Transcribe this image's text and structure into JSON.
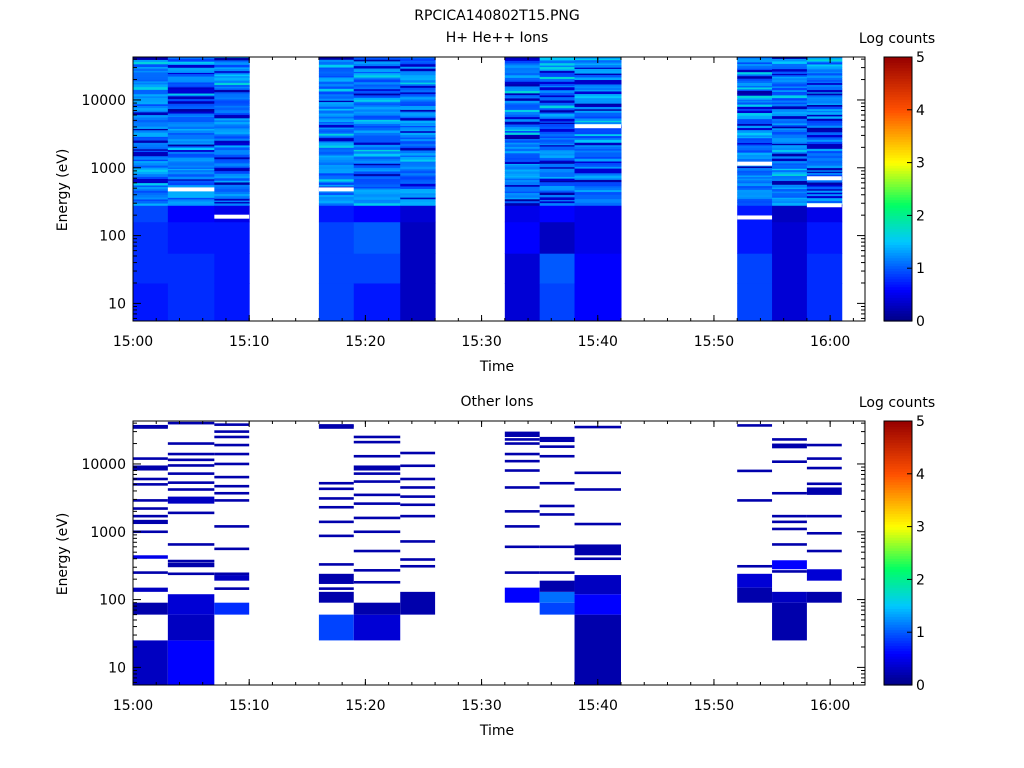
{
  "figure_title": "RPCICA140802T15.PNG",
  "chart_data": [
    {
      "type": "heatmap",
      "title": "H+ He++ Ions",
      "xlabel": "Time",
      "ylabel": "Energy (eV)",
      "colorbar_label": "Log counts",
      "colorbar_ticks": [
        "0",
        "1",
        "2",
        "3",
        "4",
        "5"
      ],
      "clim": [
        0,
        5
      ],
      "x_ticks": [
        "15:00",
        "15:10",
        "15:20",
        "15:30",
        "15:40",
        "15:50",
        "16:00"
      ],
      "y_ticks": [
        "10",
        "100",
        "1000",
        "10000"
      ],
      "y_scale": "log",
      "ylim": [
        5.5,
        43000
      ],
      "xlim": [
        "15:00",
        "16:03"
      ],
      "grid": false,
      "time_bins": [
        {
          "start": "15:00",
          "end": "15:03"
        },
        {
          "start": "15:03",
          "end": "15:07"
        },
        {
          "start": "15:07",
          "end": "15:10"
        },
        {
          "start": "15:16",
          "end": "15:19"
        },
        {
          "start": "15:19",
          "end": "15:23"
        },
        {
          "start": "15:23",
          "end": "15:26"
        },
        {
          "start": "15:32",
          "end": "15:35"
        },
        {
          "start": "15:35",
          "end": "15:38"
        },
        {
          "start": "15:38",
          "end": "15:42"
        },
        {
          "start": "15:52",
          "end": "15:55"
        },
        {
          "start": "15:55",
          "end": "15:58"
        },
        {
          "start": "15:58",
          "end": "16:01"
        }
      ],
      "dense": true,
      "low_energy_levels": [
        [
          0.7,
          0.8,
          0.7,
          0.9,
          0.7,
          0.3,
          0.4,
          0.9,
          0.6,
          0.9,
          0.4,
          0.8
        ],
        [
          0.8,
          0.8,
          0.7,
          0.9,
          0.9,
          0.3,
          0.4,
          1.0,
          0.6,
          0.9,
          0.4,
          0.8
        ],
        [
          0.8,
          0.7,
          0.7,
          0.9,
          1.0,
          0.3,
          0.6,
          0.3,
          0.5,
          0.7,
          0.4,
          0.7
        ],
        [
          0.9,
          0.6,
          0.5,
          0.7,
          0.6,
          0.4,
          0.5,
          0.6,
          0.5,
          0.7,
          0.3,
          0.5
        ]
      ],
      "white_lines": [
        {
          "bin": 1,
          "energy": 480
        },
        {
          "bin": 2,
          "energy": 190
        },
        {
          "bin": 3,
          "energy": 480
        },
        {
          "bin": 8,
          "energy": 4100
        },
        {
          "bin": 9,
          "energy": 1150
        },
        {
          "bin": 9,
          "energy": 185
        },
        {
          "bin": 11,
          "energy": 700
        },
        {
          "bin": 11,
          "energy": 280
        }
      ]
    },
    {
      "type": "heatmap",
      "title": "Other Ions",
      "xlabel": "Time",
      "ylabel": "Energy (eV)",
      "colorbar_label": "Log counts",
      "colorbar_ticks": [
        "0",
        "1",
        "2",
        "3",
        "4",
        "5"
      ],
      "clim": [
        0,
        5
      ],
      "x_ticks": [
        "15:00",
        "15:10",
        "15:20",
        "15:30",
        "15:40",
        "15:50",
        "16:00"
      ],
      "y_ticks": [
        "10",
        "100",
        "1000",
        "10000"
      ],
      "y_scale": "log",
      "ylim": [
        5.5,
        43000
      ],
      "xlim": [
        "15:00",
        "16:03"
      ],
      "grid": false,
      "time_bins": [
        {
          "start": "15:00",
          "end": "15:03"
        },
        {
          "start": "15:03",
          "end": "15:07"
        },
        {
          "start": "15:07",
          "end": "15:10"
        },
        {
          "start": "15:16",
          "end": "15:19"
        },
        {
          "start": "15:19",
          "end": "15:23"
        },
        {
          "start": "15:23",
          "end": "15:26"
        },
        {
          "start": "15:32",
          "end": "15:35"
        },
        {
          "start": "15:35",
          "end": "15:38"
        },
        {
          "start": "15:38",
          "end": "15:42"
        },
        {
          "start": "15:52",
          "end": "15:55"
        },
        {
          "start": "15:55",
          "end": "15:58"
        },
        {
          "start": "15:58",
          "end": "16:01"
        }
      ],
      "dense": false,
      "blocks": [
        {
          "bin": 0,
          "e_from": 5.5,
          "e_to": 25,
          "level": 0.3
        },
        {
          "bin": 0,
          "e_from": 60,
          "e_to": 90,
          "level": 0.2
        },
        {
          "bin": 0,
          "e_from": 130,
          "e_to": 150,
          "level": 0.3
        },
        {
          "bin": 0,
          "e_from": 400,
          "e_to": 450,
          "level": 0.5
        },
        {
          "bin": 0,
          "e_from": 1300,
          "e_to": 1500,
          "level": 0.2
        },
        {
          "bin": 0,
          "e_from": 8000,
          "e_to": 9500,
          "level": 0.2
        },
        {
          "bin": 0,
          "e_from": 33000,
          "e_to": 37000,
          "level": 0.2
        },
        {
          "bin": 1,
          "e_from": 5.5,
          "e_to": 25,
          "level": 0.6
        },
        {
          "bin": 1,
          "e_from": 25,
          "e_to": 60,
          "level": 0.3
        },
        {
          "bin": 1,
          "e_from": 60,
          "e_to": 120,
          "level": 0.4
        },
        {
          "bin": 1,
          "e_from": 2600,
          "e_to": 3300,
          "level": 0.3
        },
        {
          "bin": 1,
          "e_from": 300,
          "e_to": 350,
          "level": 0.2
        },
        {
          "bin": 2,
          "e_from": 60,
          "e_to": 90,
          "level": 0.8
        },
        {
          "bin": 2,
          "e_from": 190,
          "e_to": 230,
          "level": 0.3
        },
        {
          "bin": 3,
          "e_from": 25,
          "e_to": 60,
          "level": 0.9
        },
        {
          "bin": 3,
          "e_from": 90,
          "e_to": 130,
          "level": 0.2
        },
        {
          "bin": 3,
          "e_from": 170,
          "e_to": 240,
          "level": 0.2
        },
        {
          "bin": 3,
          "e_from": 33000,
          "e_to": 37000,
          "level": 0.2
        },
        {
          "bin": 4,
          "e_from": 25,
          "e_to": 60,
          "level": 0.4
        },
        {
          "bin": 4,
          "e_from": 60,
          "e_to": 90,
          "level": 0.2
        },
        {
          "bin": 4,
          "e_from": 8000,
          "e_to": 9500,
          "level": 0.2
        },
        {
          "bin": 5,
          "e_from": 60,
          "e_to": 130,
          "level": 0.2
        },
        {
          "bin": 6,
          "e_from": 90,
          "e_to": 150,
          "level": 0.6
        },
        {
          "bin": 6,
          "e_from": 25000,
          "e_to": 30000,
          "level": 0.2
        },
        {
          "bin": 7,
          "e_from": 60,
          "e_to": 90,
          "level": 0.9
        },
        {
          "bin": 7,
          "e_from": 90,
          "e_to": 130,
          "level": 1.1
        },
        {
          "bin": 7,
          "e_from": 130,
          "e_to": 190,
          "level": 0.2
        },
        {
          "bin": 8,
          "e_from": 5.5,
          "e_to": 60,
          "level": 0.2
        },
        {
          "bin": 8,
          "e_from": 60,
          "e_to": 120,
          "level": 0.6
        },
        {
          "bin": 8,
          "e_from": 120,
          "e_to": 230,
          "level": 0.3
        },
        {
          "bin": 8,
          "e_from": 450,
          "e_to": 650,
          "level": 0.2
        },
        {
          "bin": 9,
          "e_from": 90,
          "e_to": 150,
          "level": 0.2
        },
        {
          "bin": 9,
          "e_from": 150,
          "e_to": 240,
          "level": 0.4
        },
        {
          "bin": 10,
          "e_from": 25,
          "e_to": 90,
          "level": 0.2
        },
        {
          "bin": 10,
          "e_from": 90,
          "e_to": 130,
          "level": 0.3
        },
        {
          "bin": 10,
          "e_from": 280,
          "e_to": 380,
          "level": 0.6
        },
        {
          "bin": 10,
          "e_from": 17000,
          "e_to": 20000,
          "level": 0.2
        },
        {
          "bin": 11,
          "e_from": 90,
          "e_to": 130,
          "level": 0.2
        },
        {
          "bin": 11,
          "e_from": 190,
          "e_to": 280,
          "level": 0.4
        },
        {
          "bin": 11,
          "e_from": 3500,
          "e_to": 4500,
          "level": 0.2
        }
      ],
      "lines": [
        {
          "bin": 0,
          "energies": [
            250,
            1000,
            1700,
            2200,
            2900,
            5000,
            6000,
            12000,
            36000
          ]
        },
        {
          "bin": 1,
          "energies": [
            240,
            370,
            650,
            1900,
            4200,
            5300,
            7200,
            9500,
            11500,
            14000,
            20000,
            40000
          ]
        },
        {
          "bin": 2,
          "energies": [
            145,
            240,
            560,
            1200,
            2900,
            3700,
            4700,
            6400,
            10000,
            14000,
            19000,
            25000,
            30000,
            38000
          ]
        },
        {
          "bin": 3,
          "energies": [
            145,
            330,
            870,
            1400,
            2300,
            3100,
            4300,
            5200,
            37000
          ]
        },
        {
          "bin": 4,
          "energies": [
            180,
            270,
            520,
            1000,
            1600,
            2600,
            3500,
            5500,
            7200,
            13000,
            21000,
            25000
          ]
        },
        {
          "bin": 5,
          "energies": [
            310,
            390,
            720,
            1700,
            2500,
            3300,
            4500,
            6000,
            9400,
            14500
          ]
        },
        {
          "bin": 6,
          "energies": [
            250,
            600,
            1200,
            2000,
            4500,
            8000,
            11000,
            14000,
            20000,
            23000
          ]
        },
        {
          "bin": 7,
          "energies": [
            250,
            600,
            1800,
            2400,
            5200,
            13000,
            18000,
            22000,
            24000
          ]
        },
        {
          "bin": 8,
          "energies": [
            400,
            1300,
            4200,
            7400,
            35000
          ]
        },
        {
          "bin": 9,
          "energies": [
            310,
            2900,
            7900,
            37000
          ]
        },
        {
          "bin": 10,
          "energies": [
            260,
            650,
            1100,
            1400,
            1700,
            3700,
            10800,
            23000
          ]
        },
        {
          "bin": 11,
          "energies": [
            520,
            950,
            1700,
            5100,
            8700,
            12000,
            19000
          ]
        }
      ]
    }
  ]
}
